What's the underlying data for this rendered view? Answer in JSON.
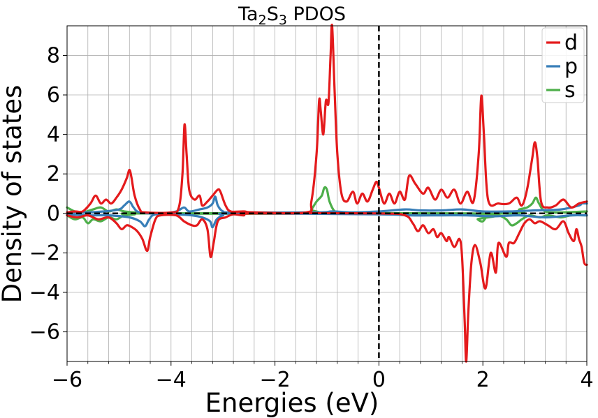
{
  "chart_data": {
    "type": "line",
    "title": "Ta2S3 PDOS",
    "title_parts": {
      "a": "Ta",
      "sub1": "2",
      "b": "S",
      "sub2": "3",
      "c": " PDOS"
    },
    "xlabel": "Energies (eV)",
    "ylabel": "Density of states",
    "xlim": [
      -6,
      4
    ],
    "ylim": [
      -7.5,
      9.5
    ],
    "xticks": [
      -6,
      -4,
      -2,
      0,
      2,
      4
    ],
    "yticks": [
      -6,
      -4,
      -2,
      0,
      2,
      4,
      6,
      8
    ],
    "minor_xticks": [
      -5.6,
      -5.2,
      -4.8,
      -4.4,
      -3.6,
      -3.2,
      -2.8,
      -2.4,
      -1.6,
      -1.2,
      -0.8,
      -0.4,
      0.4,
      0.8,
      1.2,
      1.6,
      2.4,
      2.8,
      3.2,
      3.6
    ],
    "grid": true,
    "legend_position": "top-right",
    "fermi_level": 0,
    "series": [
      {
        "name": "d",
        "color": "#e41a1c",
        "up": [
          [
            -6.0,
            0.05
          ],
          [
            -5.85,
            0.1
          ],
          [
            -5.7,
            0.1
          ],
          [
            -5.55,
            0.5
          ],
          [
            -5.45,
            0.9
          ],
          [
            -5.35,
            0.5
          ],
          [
            -5.25,
            0.7
          ],
          [
            -5.15,
            0.5
          ],
          [
            -5.05,
            0.8
          ],
          [
            -4.95,
            1.2
          ],
          [
            -4.85,
            1.8
          ],
          [
            -4.8,
            2.2
          ],
          [
            -4.76,
            1.8
          ],
          [
            -4.7,
            0.9
          ],
          [
            -4.6,
            0.2
          ],
          [
            -4.5,
            0.05
          ],
          [
            -4.0,
            0.05
          ],
          [
            -3.85,
            0.3
          ],
          [
            -3.78,
            2.0
          ],
          [
            -3.74,
            4.5
          ],
          [
            -3.7,
            3.0
          ],
          [
            -3.65,
            1.2
          ],
          [
            -3.55,
            0.7
          ],
          [
            -3.45,
            0.9
          ],
          [
            -3.4,
            0.4
          ],
          [
            -3.3,
            0.6
          ],
          [
            -3.2,
            0.9
          ],
          [
            -3.1,
            1.2
          ],
          [
            -3.05,
            1.1
          ],
          [
            -2.95,
            0.4
          ],
          [
            -2.85,
            0.1
          ],
          [
            -2.6,
            0.1
          ],
          [
            -2.4,
            0.05
          ],
          [
            -1.4,
            0.05
          ],
          [
            -1.3,
            0.6
          ],
          [
            -1.2,
            3.0
          ],
          [
            -1.15,
            5.7
          ],
          [
            -1.12,
            5.2
          ],
          [
            -1.07,
            4.0
          ],
          [
            -1.02,
            5.7
          ],
          [
            -0.97,
            5.6
          ],
          [
            -0.93,
            8.0
          ],
          [
            -0.9,
            9.5
          ],
          [
            -0.85,
            6.0
          ],
          [
            -0.8,
            3.0
          ],
          [
            -0.72,
            1.0
          ],
          [
            -0.62,
            0.6
          ],
          [
            -0.5,
            1.1
          ],
          [
            -0.42,
            0.5
          ],
          [
            -0.32,
            1.0
          ],
          [
            -0.22,
            0.6
          ],
          [
            -0.12,
            1.2
          ],
          [
            -0.05,
            1.6
          ],
          [
            0.0,
            1.3
          ],
          [
            0.1,
            0.5
          ],
          [
            0.2,
            1.0
          ],
          [
            0.3,
            0.5
          ],
          [
            0.4,
            1.1
          ],
          [
            0.5,
            0.7
          ],
          [
            0.58,
            1.9
          ],
          [
            0.7,
            1.5
          ],
          [
            0.85,
            1.0
          ],
          [
            0.95,
            1.3
          ],
          [
            1.08,
            0.7
          ],
          [
            1.2,
            1.2
          ],
          [
            1.32,
            0.8
          ],
          [
            1.45,
            1.2
          ],
          [
            1.57,
            0.5
          ],
          [
            1.7,
            1.1
          ],
          [
            1.82,
            0.6
          ],
          [
            1.92,
            3.0
          ],
          [
            1.97,
            5.95
          ],
          [
            2.02,
            4.0
          ],
          [
            2.1,
            0.7
          ],
          [
            2.3,
            0.5
          ],
          [
            2.5,
            0.5
          ],
          [
            2.65,
            0.8
          ],
          [
            2.75,
            0.4
          ],
          [
            2.85,
            1.2
          ],
          [
            2.95,
            2.8
          ],
          [
            3.0,
            3.6
          ],
          [
            3.05,
            2.8
          ],
          [
            3.12,
            0.6
          ],
          [
            3.25,
            0.3
          ],
          [
            3.4,
            0.4
          ],
          [
            3.55,
            0.7
          ],
          [
            3.7,
            0.3
          ],
          [
            3.85,
            0.5
          ],
          [
            4.0,
            0.6
          ]
        ],
        "down": [
          [
            -6.0,
            -0.1
          ],
          [
            -5.8,
            -0.2
          ],
          [
            -5.6,
            -0.1
          ],
          [
            -5.4,
            -0.3
          ],
          [
            -5.2,
            -0.2
          ],
          [
            -5.05,
            -0.5
          ],
          [
            -4.95,
            -0.8
          ],
          [
            -4.85,
            -0.6
          ],
          [
            -4.75,
            -0.7
          ],
          [
            -4.65,
            -0.9
          ],
          [
            -4.55,
            -1.3
          ],
          [
            -4.46,
            -1.9
          ],
          [
            -4.4,
            -1.2
          ],
          [
            -4.3,
            -0.3
          ],
          [
            -4.2,
            -0.1
          ],
          [
            -3.9,
            -0.1
          ],
          [
            -3.75,
            -0.4
          ],
          [
            -3.6,
            -0.6
          ],
          [
            -3.5,
            -0.6
          ],
          [
            -3.4,
            -0.3
          ],
          [
            -3.3,
            -0.8
          ],
          [
            -3.24,
            -2.2
          ],
          [
            -3.18,
            -1.5
          ],
          [
            -3.1,
            -0.4
          ],
          [
            -2.95,
            -0.2
          ],
          [
            -2.8,
            -0.05
          ],
          [
            -2.6,
            -0.1
          ],
          [
            -2.4,
            0.0
          ],
          [
            0.0,
            0.0
          ],
          [
            0.5,
            -0.1
          ],
          [
            0.65,
            -0.5
          ],
          [
            0.75,
            -0.9
          ],
          [
            0.85,
            -0.6
          ],
          [
            0.95,
            -1.0
          ],
          [
            1.05,
            -0.8
          ],
          [
            1.12,
            -1.2
          ],
          [
            1.2,
            -1.0
          ],
          [
            1.3,
            -1.4
          ],
          [
            1.35,
            -1.2
          ],
          [
            1.45,
            -1.7
          ],
          [
            1.55,
            -1.3
          ],
          [
            1.6,
            -2.2
          ],
          [
            1.65,
            -5.5
          ],
          [
            1.68,
            -7.5
          ],
          [
            1.72,
            -5.0
          ],
          [
            1.78,
            -2.5
          ],
          [
            1.85,
            -1.6
          ],
          [
            1.95,
            -2.5
          ],
          [
            2.05,
            -3.8
          ],
          [
            2.15,
            -2.0
          ],
          [
            2.25,
            -3.0
          ],
          [
            2.3,
            -1.5
          ],
          [
            2.45,
            -2.2
          ],
          [
            2.5,
            -1.5
          ],
          [
            2.6,
            -1.5
          ],
          [
            2.7,
            -1.0
          ],
          [
            2.8,
            -0.5
          ],
          [
            2.9,
            -0.3
          ],
          [
            3.0,
            -0.5
          ],
          [
            3.1,
            -0.4
          ],
          [
            3.25,
            -0.6
          ],
          [
            3.4,
            -0.8
          ],
          [
            3.55,
            -0.4
          ],
          [
            3.65,
            -1.0
          ],
          [
            3.75,
            -1.4
          ],
          [
            3.8,
            -0.8
          ],
          [
            3.85,
            -1.3
          ],
          [
            3.9,
            -1.7
          ],
          [
            3.95,
            -2.5
          ],
          [
            4.0,
            -2.6
          ]
        ]
      },
      {
        "name": "p",
        "color": "#377eb8",
        "up": [
          [
            -6.0,
            0.05
          ],
          [
            -5.6,
            0.05
          ],
          [
            -5.3,
            0.1
          ],
          [
            -5.0,
            0.2
          ],
          [
            -4.9,
            0.4
          ],
          [
            -4.8,
            0.6
          ],
          [
            -4.72,
            0.3
          ],
          [
            -4.6,
            0.05
          ],
          [
            -4.2,
            0.0
          ],
          [
            -3.9,
            0.1
          ],
          [
            -3.75,
            0.3
          ],
          [
            -3.65,
            0.1
          ],
          [
            -3.45,
            0.2
          ],
          [
            -3.3,
            0.3
          ],
          [
            -3.2,
            0.5
          ],
          [
            -3.15,
            0.85
          ],
          [
            -3.1,
            0.4
          ],
          [
            -3.0,
            0.1
          ],
          [
            -2.8,
            0.05
          ],
          [
            -1.2,
            0.05
          ],
          [
            -0.9,
            0.1
          ],
          [
            -0.5,
            0.05
          ],
          [
            0.0,
            0.1
          ],
          [
            0.5,
            0.2
          ],
          [
            0.8,
            0.15
          ],
          [
            1.2,
            0.15
          ],
          [
            1.6,
            0.2
          ],
          [
            2.0,
            0.1
          ],
          [
            2.5,
            0.1
          ],
          [
            3.0,
            0.15
          ],
          [
            3.5,
            0.2
          ],
          [
            3.85,
            0.4
          ],
          [
            3.9,
            0.5
          ],
          [
            4.0,
            0.5
          ]
        ],
        "down": [
          [
            -6.0,
            -0.05
          ],
          [
            -5.6,
            -0.1
          ],
          [
            -5.2,
            -0.1
          ],
          [
            -4.8,
            -0.2
          ],
          [
            -4.6,
            -0.4
          ],
          [
            -4.5,
            -0.65
          ],
          [
            -4.42,
            -0.3
          ],
          [
            -4.3,
            -0.05
          ],
          [
            -3.9,
            -0.05
          ],
          [
            -3.6,
            -0.1
          ],
          [
            -3.4,
            -0.2
          ],
          [
            -3.25,
            -0.4
          ],
          [
            -3.2,
            -0.7
          ],
          [
            -3.12,
            -0.3
          ],
          [
            -3.0,
            -0.1
          ],
          [
            -2.8,
            0.0
          ],
          [
            0.0,
            -0.05
          ],
          [
            0.6,
            -0.1
          ],
          [
            1.2,
            -0.1
          ],
          [
            1.7,
            -0.1
          ],
          [
            2.2,
            -0.15
          ],
          [
            2.7,
            -0.1
          ],
          [
            3.2,
            -0.2
          ],
          [
            3.7,
            -0.1
          ],
          [
            4.0,
            -0.1
          ]
        ]
      },
      {
        "name": "s",
        "color": "#4daf4a",
        "up": [
          [
            -6.0,
            0.3
          ],
          [
            -5.85,
            0.1
          ],
          [
            -5.7,
            0.05
          ],
          [
            -5.5,
            0.2
          ],
          [
            -5.35,
            0.3
          ],
          [
            -5.2,
            0.1
          ],
          [
            -5.05,
            0.2
          ],
          [
            -4.9,
            0.1
          ],
          [
            -4.7,
            0.05
          ],
          [
            -4.4,
            0.0
          ],
          [
            -1.4,
            0.0
          ],
          [
            -1.3,
            0.2
          ],
          [
            -1.2,
            0.6
          ],
          [
            -1.1,
            0.9
          ],
          [
            -1.05,
            1.3
          ],
          [
            -1.0,
            1.2
          ],
          [
            -0.95,
            0.6
          ],
          [
            -0.85,
            0.1
          ],
          [
            -0.7,
            0.0
          ],
          [
            2.5,
            0.0
          ],
          [
            2.7,
            0.2
          ],
          [
            2.85,
            0.3
          ],
          [
            2.95,
            0.5
          ],
          [
            3.02,
            0.8
          ],
          [
            3.08,
            0.5
          ],
          [
            3.2,
            0.1
          ],
          [
            3.5,
            0.05
          ],
          [
            4.0,
            0.1
          ]
        ],
        "down": [
          [
            -6.0,
            -0.1
          ],
          [
            -5.85,
            -0.3
          ],
          [
            -5.7,
            -0.2
          ],
          [
            -5.6,
            -0.5
          ],
          [
            -5.5,
            -0.3
          ],
          [
            -5.35,
            -0.4
          ],
          [
            -5.2,
            -0.2
          ],
          [
            -5.05,
            -0.3
          ],
          [
            -4.9,
            -0.1
          ],
          [
            -4.7,
            -0.05
          ],
          [
            -4.4,
            0.0
          ],
          [
            1.8,
            0.0
          ],
          [
            1.9,
            -0.3
          ],
          [
            2.0,
            -0.4
          ],
          [
            2.1,
            -0.1
          ],
          [
            2.3,
            -0.1
          ],
          [
            2.45,
            -0.3
          ],
          [
            2.55,
            -0.6
          ],
          [
            2.65,
            -0.5
          ],
          [
            2.75,
            -0.3
          ],
          [
            2.9,
            -0.1
          ],
          [
            3.1,
            -0.2
          ],
          [
            3.25,
            -0.1
          ],
          [
            3.5,
            -0.2
          ],
          [
            3.7,
            -0.1
          ],
          [
            4.0,
            -0.1
          ]
        ]
      }
    ]
  }
}
